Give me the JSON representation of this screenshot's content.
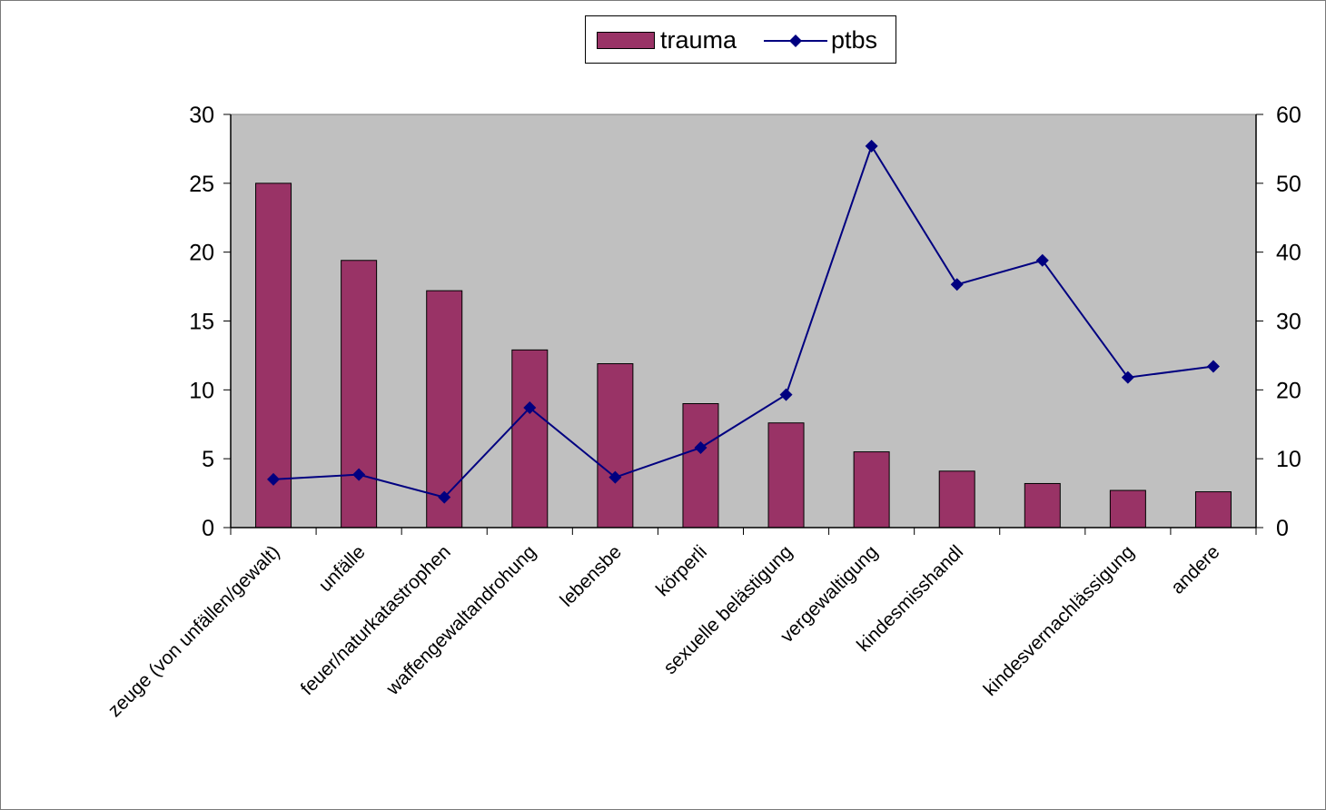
{
  "colors": {
    "page_background": "#ffffcc",
    "plot_background": "#c0c0c0",
    "bar_fill": "#993366",
    "line_color": "#000080"
  },
  "legend": {
    "items": [
      {
        "label": "trauma",
        "symbol": "bar"
      },
      {
        "label": "ptbs",
        "symbol": "line-diamond"
      }
    ]
  },
  "chart_data": {
    "type": "bar",
    "title": "",
    "xlabel": "",
    "ylabel": "",
    "categories": [
      "zeuge (von unfällen/gewalt)",
      "unfälle",
      "feuer/naturkatastrophen",
      "waffengewaltandrohung",
      "lebensbe",
      "körperli",
      "sexuelle belästigung",
      "vergewaltigung",
      "kindesmisshandl",
      "",
      "kindesvernachlässigung",
      "andere"
    ],
    "series": [
      {
        "name": "trauma",
        "type": "bar",
        "axis": "left",
        "values": [
          25.0,
          19.4,
          17.2,
          12.9,
          11.9,
          9.0,
          7.6,
          5.5,
          4.1,
          3.2,
          2.7,
          2.6
        ]
      },
      {
        "name": "ptbs",
        "type": "line",
        "marker": "diamond",
        "axis": "right",
        "values": [
          7.0,
          7.7,
          4.4,
          17.4,
          7.3,
          11.6,
          19.3,
          55.4,
          35.3,
          38.8,
          21.8,
          23.4
        ]
      }
    ],
    "y_left": {
      "min": 0,
      "max": 30,
      "ticks": [
        0,
        5,
        10,
        15,
        20,
        25,
        30
      ]
    },
    "y_right": {
      "min": 0,
      "max": 60,
      "ticks": [
        0,
        10,
        20,
        30,
        40,
        50,
        60
      ]
    },
    "grid": false,
    "legend_position": "top-center"
  }
}
